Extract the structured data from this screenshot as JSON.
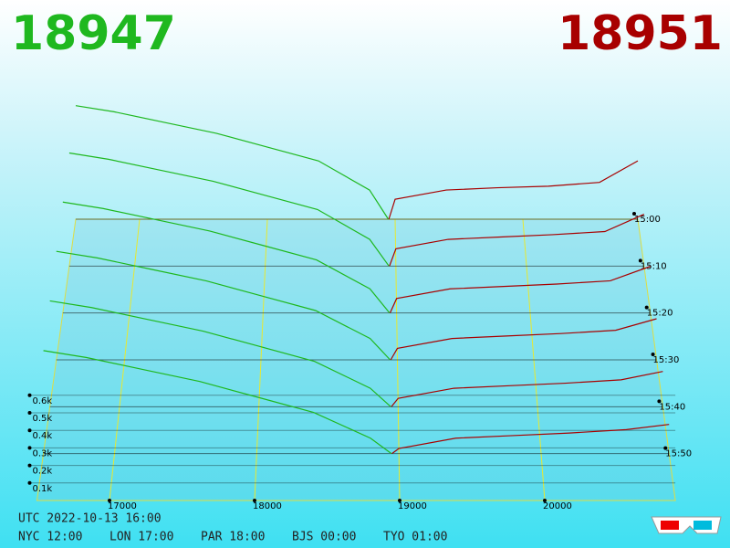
{
  "chart_data": {
    "type": "depth3d",
    "bid": 18947,
    "ask": 18951,
    "bid_color": "#1fb81f",
    "ask_color": "#a80000",
    "xlim": [
      16500,
      20900
    ],
    "xticks": [
      17000,
      18000,
      19000,
      20000
    ],
    "zlim": [
      0,
      700
    ],
    "zticks": [
      {
        "value": 100,
        "label": "0.1k"
      },
      {
        "value": 200,
        "label": "0.2k"
      },
      {
        "value": 300,
        "label": "0.3k"
      },
      {
        "value": 400,
        "label": "0.4k"
      },
      {
        "value": 500,
        "label": "0.5k"
      },
      {
        "value": 600,
        "label": "0.6k"
      }
    ],
    "bid_prices": [
      18947,
      18800,
      18400,
      18000,
      17600,
      17200,
      16800,
      16500
    ],
    "ask_prices": [
      18951,
      19000,
      19400,
      19800,
      20200,
      20600,
      20900
    ],
    "series": [
      {
        "name": "15:00",
        "bid_values": [
          0,
          190,
          380,
          470,
          560,
          630,
          700,
          740
        ],
        "ask_values": [
          0,
          130,
          190,
          205,
          215,
          240,
          380
        ]
      },
      {
        "name": "15:10",
        "bid_values": [
          0,
          170,
          360,
          450,
          540,
          610,
          680,
          720
        ],
        "ask_values": [
          0,
          110,
          170,
          185,
          200,
          220,
          330
        ]
      },
      {
        "name": "15:20",
        "bid_values": [
          0,
          150,
          330,
          420,
          510,
          580,
          650,
          690
        ],
        "ask_values": [
          0,
          90,
          150,
          165,
          180,
          200,
          290
        ]
      },
      {
        "name": "15:30",
        "bid_values": [
          0,
          130,
          300,
          390,
          480,
          550,
          620,
          660
        ],
        "ask_values": [
          0,
          70,
          130,
          145,
          160,
          180,
          250
        ]
      },
      {
        "name": "15:40",
        "bid_values": [
          0,
          110,
          270,
          360,
          450,
          520,
          590,
          630
        ],
        "ask_values": [
          0,
          50,
          110,
          125,
          140,
          160,
          210
        ]
      },
      {
        "name": "15:50",
        "bid_values": [
          0,
          90,
          240,
          330,
          420,
          490,
          560,
          600
        ],
        "ask_values": [
          0,
          30,
          90,
          105,
          120,
          140,
          170
        ]
      }
    ],
    "footer": [
      "UTC 2022-10-13 16:00",
      "NYC 12:00",
      "LON 17:00",
      "PAR 18:00",
      "BJS 00:00",
      "TYO 01:00"
    ]
  }
}
